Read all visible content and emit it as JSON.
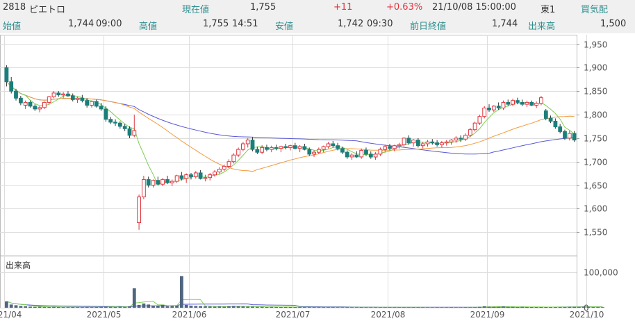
{
  "quote": {
    "code": "2818",
    "name": "ピエトロ",
    "current_label": "現在値",
    "current_value": "1,755",
    "change": "+11",
    "change_pct": "+0.63%",
    "datetime": "21/10/08 15:00:00",
    "market": "東1",
    "kehai_label": "買気配",
    "open_label": "始値",
    "open_value": "1,744",
    "open_time": "09:00",
    "high_label": "高値",
    "high_value": "1,755",
    "high_time": "14:51",
    "low_label": "安値",
    "low_value": "1,742",
    "low_time": "09:30",
    "prev_close_label": "前日終値",
    "prev_close_value": "1,744",
    "volume_label": "出来高",
    "volume_value": "1,500"
  },
  "colors": {
    "up": "#e0333c",
    "down": "#1a7f7a",
    "ma_short": "#7ccf52",
    "ma_mid": "#f39a3c",
    "ma_long": "#5858d8",
    "volume": "#4f6680",
    "label": "#2f8f8f"
  },
  "chart_data": {
    "type": "candlestick",
    "price_axis": {
      "ylim": [
        1500,
        1970
      ],
      "ticks": [
        "1,950",
        "1,900",
        "1,850",
        "1,800",
        "1,750",
        "1,700",
        "1,650",
        "1,600",
        "1,550"
      ],
      "tick_values": [
        1950,
        1900,
        1850,
        1800,
        1750,
        1700,
        1650,
        1600,
        1550
      ]
    },
    "volume_axis": {
      "label": "出来高",
      "ylim": [
        0,
        140000
      ],
      "ticks": [
        "100,000",
        "0"
      ],
      "tick_values": [
        100000,
        0
      ]
    },
    "x_ticks": [
      {
        "label": "2021/04",
        "idx": 0
      },
      {
        "label": "2021/05",
        "idx": 21
      },
      {
        "label": "2021/06",
        "idx": 39
      },
      {
        "label": "2021/07",
        "idx": 61
      },
      {
        "label": "2021/08",
        "idx": 81
      },
      {
        "label": "2021/09",
        "idx": 102
      },
      {
        "label": "2021/10",
        "idx": 123
      }
    ],
    "candles": [
      [
        1900,
        1905,
        1860,
        1870
      ],
      [
        1870,
        1880,
        1845,
        1850
      ],
      [
        1850,
        1855,
        1830,
        1835
      ],
      [
        1835,
        1840,
        1820,
        1825
      ],
      [
        1820,
        1830,
        1812,
        1826
      ],
      [
        1826,
        1830,
        1815,
        1818
      ],
      [
        1818,
        1822,
        1808,
        1812
      ],
      [
        1812,
        1818,
        1805,
        1815
      ],
      [
        1815,
        1828,
        1812,
        1826
      ],
      [
        1826,
        1840,
        1822,
        1838
      ],
      [
        1838,
        1850,
        1835,
        1846
      ],
      [
        1846,
        1850,
        1838,
        1842
      ],
      [
        1842,
        1848,
        1835,
        1844
      ],
      [
        1844,
        1850,
        1838,
        1840
      ],
      [
        1840,
        1845,
        1828,
        1832
      ],
      [
        1832,
        1838,
        1825,
        1835
      ],
      [
        1835,
        1842,
        1826,
        1830
      ],
      [
        1830,
        1835,
        1815,
        1820
      ],
      [
        1820,
        1830,
        1815,
        1828
      ],
      [
        1828,
        1832,
        1815,
        1818
      ],
      [
        1818,
        1825,
        1808,
        1812
      ],
      [
        1812,
        1818,
        1785,
        1790
      ],
      [
        1790,
        1795,
        1780,
        1784
      ],
      [
        1784,
        1790,
        1776,
        1782
      ],
      [
        1782,
        1786,
        1770,
        1775
      ],
      [
        1775,
        1780,
        1765,
        1770
      ],
      [
        1770,
        1775,
        1750,
        1756
      ],
      [
        1756,
        1800,
        1752,
        1766
      ],
      [
        1570,
        1630,
        1555,
        1625
      ],
      [
        1625,
        1670,
        1620,
        1662
      ],
      [
        1662,
        1668,
        1645,
        1650
      ],
      [
        1650,
        1662,
        1645,
        1660
      ],
      [
        1660,
        1668,
        1650,
        1652
      ],
      [
        1652,
        1665,
        1648,
        1662
      ],
      [
        1662,
        1670,
        1652,
        1655
      ],
      [
        1655,
        1662,
        1648,
        1658
      ],
      [
        1658,
        1672,
        1655,
        1670
      ],
      [
        1670,
        1678,
        1660,
        1664
      ],
      [
        1664,
        1675,
        1655,
        1672
      ],
      [
        1672,
        1676,
        1662,
        1668
      ],
      [
        1668,
        1680,
        1664,
        1676
      ],
      [
        1676,
        1682,
        1662,
        1664
      ],
      [
        1664,
        1672,
        1658,
        1666
      ],
      [
        1666,
        1676,
        1660,
        1672
      ],
      [
        1672,
        1682,
        1668,
        1678
      ],
      [
        1678,
        1688,
        1674,
        1684
      ],
      [
        1684,
        1694,
        1680,
        1690
      ],
      [
        1690,
        1705,
        1686,
        1700
      ],
      [
        1700,
        1718,
        1696,
        1714
      ],
      [
        1714,
        1730,
        1710,
        1726
      ],
      [
        1726,
        1742,
        1722,
        1738
      ],
      [
        1738,
        1750,
        1730,
        1746
      ],
      [
        1746,
        1752,
        1722,
        1726
      ],
      [
        1726,
        1732,
        1716,
        1720
      ],
      [
        1720,
        1735,
        1716,
        1730
      ],
      [
        1730,
        1736,
        1722,
        1726
      ],
      [
        1726,
        1734,
        1720,
        1730
      ],
      [
        1730,
        1736,
        1724,
        1728
      ],
      [
        1728,
        1734,
        1720,
        1732
      ],
      [
        1732,
        1738,
        1726,
        1730
      ],
      [
        1730,
        1736,
        1724,
        1734
      ],
      [
        1734,
        1740,
        1726,
        1728
      ],
      [
        1728,
        1735,
        1720,
        1732
      ],
      [
        1732,
        1738,
        1724,
        1726
      ],
      [
        1726,
        1730,
        1712,
        1716
      ],
      [
        1716,
        1724,
        1710,
        1720
      ],
      [
        1720,
        1730,
        1716,
        1726
      ],
      [
        1726,
        1734,
        1720,
        1732
      ],
      [
        1732,
        1742,
        1728,
        1738
      ],
      [
        1738,
        1744,
        1730,
        1734
      ],
      [
        1734,
        1740,
        1724,
        1728
      ],
      [
        1728,
        1732,
        1716,
        1720
      ],
      [
        1720,
        1724,
        1706,
        1710
      ],
      [
        1710,
        1718,
        1704,
        1714
      ],
      [
        1714,
        1722,
        1708,
        1710
      ],
      [
        1710,
        1728,
        1706,
        1724
      ],
      [
        1724,
        1730,
        1712,
        1716
      ],
      [
        1716,
        1722,
        1706,
        1710
      ],
      [
        1710,
        1720,
        1704,
        1716
      ],
      [
        1716,
        1730,
        1712,
        1726
      ],
      [
        1726,
        1736,
        1720,
        1732
      ],
      [
        1732,
        1738,
        1724,
        1728
      ],
      [
        1728,
        1736,
        1722,
        1734
      ],
      [
        1734,
        1740,
        1728,
        1736
      ],
      [
        1736,
        1752,
        1732,
        1750
      ],
      [
        1750,
        1756,
        1736,
        1740
      ],
      [
        1740,
        1748,
        1732,
        1746
      ],
      [
        1746,
        1750,
        1730,
        1734
      ],
      [
        1734,
        1742,
        1728,
        1738
      ],
      [
        1738,
        1746,
        1732,
        1742
      ],
      [
        1742,
        1748,
        1736,
        1740
      ],
      [
        1740,
        1746,
        1732,
        1736
      ],
      [
        1736,
        1744,
        1730,
        1740
      ],
      [
        1740,
        1746,
        1734,
        1742
      ],
      [
        1742,
        1748,
        1736,
        1746
      ],
      [
        1746,
        1754,
        1740,
        1750
      ],
      [
        1750,
        1756,
        1742,
        1748
      ],
      [
        1748,
        1760,
        1744,
        1756
      ],
      [
        1756,
        1772,
        1752,
        1768
      ],
      [
        1768,
        1785,
        1764,
        1782
      ],
      [
        1782,
        1800,
        1778,
        1796
      ],
      [
        1796,
        1818,
        1792,
        1814
      ],
      [
        1814,
        1822,
        1806,
        1810
      ],
      [
        1810,
        1820,
        1806,
        1818
      ],
      [
        1818,
        1826,
        1810,
        1814
      ],
      [
        1814,
        1830,
        1810,
        1826
      ],
      [
        1826,
        1832,
        1818,
        1822
      ],
      [
        1822,
        1834,
        1818,
        1830
      ],
      [
        1830,
        1836,
        1822,
        1826
      ],
      [
        1826,
        1832,
        1818,
        1822
      ],
      [
        1822,
        1830,
        1816,
        1826
      ],
      [
        1826,
        1830,
        1818,
        1820
      ],
      [
        1820,
        1828,
        1814,
        1824
      ],
      [
        1824,
        1840,
        1820,
        1836
      ],
      [
        1808,
        1812,
        1788,
        1792
      ],
      [
        1792,
        1798,
        1782,
        1786
      ],
      [
        1786,
        1792,
        1770,
        1774
      ],
      [
        1774,
        1780,
        1760,
        1764
      ],
      [
        1764,
        1768,
        1746,
        1750
      ],
      [
        1750,
        1766,
        1745,
        1760
      ],
      [
        1760,
        1765,
        1742,
        1746
      ]
    ],
    "volume": [
      18000,
      9000,
      7000,
      5000,
      4000,
      3000,
      2500,
      3000,
      2000,
      2000,
      2500,
      2000,
      1500,
      1500,
      2000,
      1500,
      1500,
      2000,
      1500,
      2000,
      2500,
      3000,
      2500,
      2000,
      3000,
      2500,
      4000,
      55000,
      8000,
      12000,
      9000,
      6000,
      5000,
      8000,
      4000,
      5000,
      6000,
      90000,
      8000,
      6000,
      5000,
      4500,
      4000,
      3500,
      3000,
      3500,
      3000,
      4000,
      5000,
      4000,
      3500,
      3000,
      3000,
      2500,
      2500,
      2000,
      2500,
      2000,
      2000,
      2000,
      2000,
      1800,
      1800,
      1600,
      1600,
      1500,
      1500,
      1500,
      1600,
      1500,
      1400,
      1400,
      1500,
      1400,
      1400,
      1500,
      1400,
      1400,
      1300,
      1300,
      1400,
      1300,
      1300,
      1300,
      1400,
      1300,
      1300,
      1300,
      1300,
      1200,
      1200,
      1300,
      1200,
      1200,
      1300,
      1200,
      1200,
      1300,
      1400,
      1500,
      2500,
      4000,
      3000,
      2500,
      2500,
      3500,
      2500,
      2500,
      2000,
      2500,
      2000,
      2000,
      2000,
      2000,
      2000,
      1800,
      1800,
      1800,
      2000,
      2500,
      2500,
      2500,
      3000,
      2500,
      2000,
      2000,
      1500
    ]
  }
}
